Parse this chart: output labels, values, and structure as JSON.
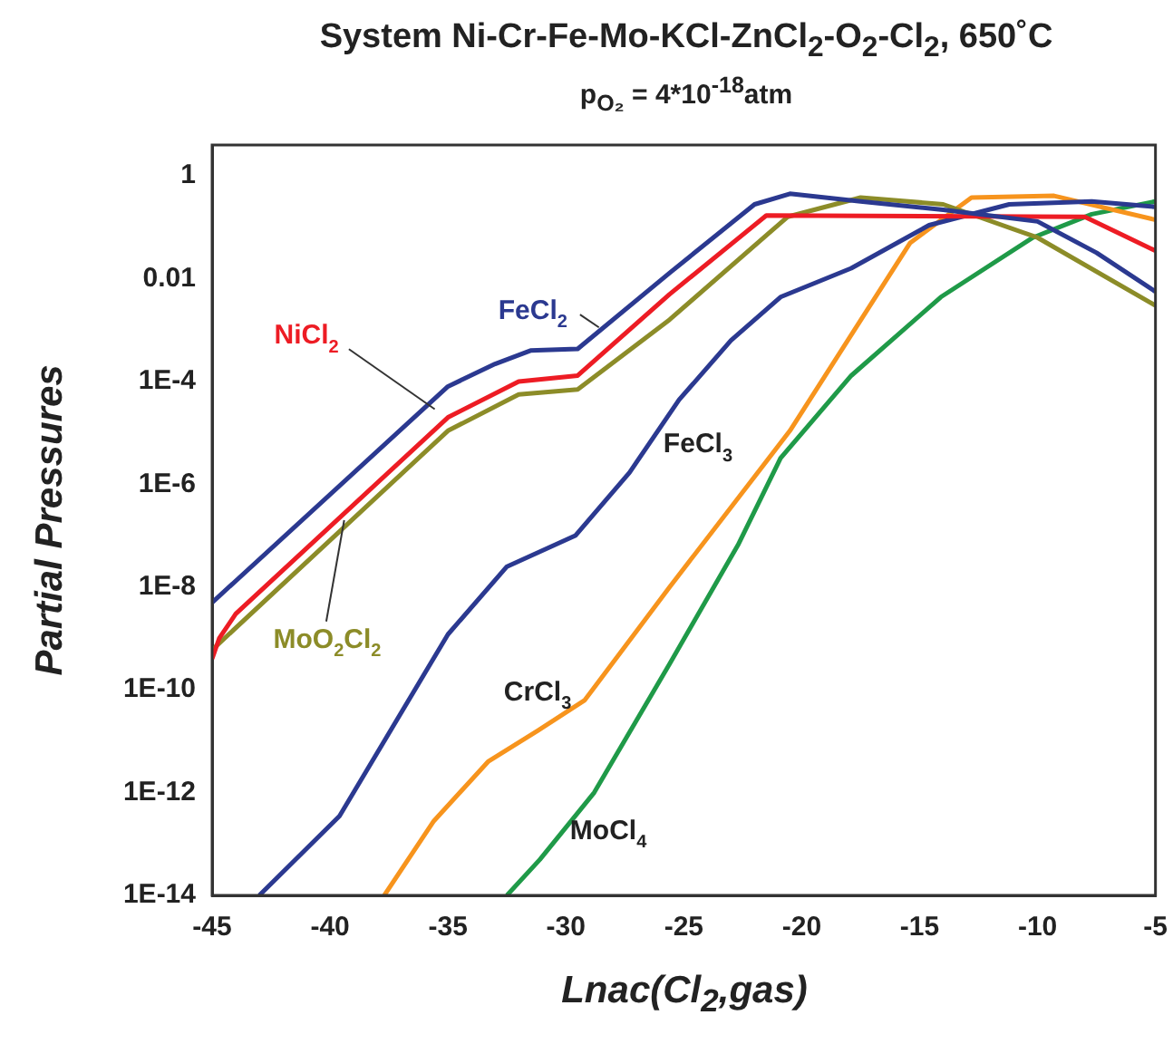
{
  "chart_data": {
    "type": "line",
    "title": "System Ni-Cr-Fe-Mo-KCl-ZnCl$_{2}$-O$_{2}$-Cl$_{2}$, 650˚C",
    "subtitle": "p$_{O₂}$ = 4*10$^{-18}$atm",
    "xlabel": "Lnac(Cl$_{2}$,gas)",
    "ylabel": "Partial Pressures",
    "log": "y",
    "xlim": [
      -45,
      -5
    ],
    "xticks": [
      -45,
      -40,
      -35,
      -30,
      -25,
      -20,
      -15,
      -10,
      -5
    ],
    "ylim": [
      1e-14,
      4
    ],
    "yticks": [
      {
        "value": 1,
        "label": "1"
      },
      {
        "value": 0.01,
        "label": "0.01"
      },
      {
        "value": 0.0001,
        "label": "1E-4"
      },
      {
        "value": 1e-06,
        "label": "1E-6"
      },
      {
        "value": 1e-08,
        "label": "1E-8"
      },
      {
        "value": 1e-10,
        "label": "1E-10"
      },
      {
        "value": 1e-12,
        "label": "1E-12"
      },
      {
        "value": 1e-14,
        "label": "1E-14"
      }
    ],
    "series": [
      {
        "name": "FeCl$_{2}$",
        "color": "#2b3990",
        "x": [
          -45,
          -35,
          -33,
          -31.5,
          -29.5,
          -25.6,
          -22,
          -20.5,
          -17.5,
          -14,
          -10,
          -7.5,
          -5
        ],
        "values": [
          5e-09,
          8e-05,
          0.00022,
          0.0004,
          0.00043,
          0.013,
          0.28,
          0.45,
          0.32,
          0.22,
          0.13,
          0.032,
          0.0056
        ]
      },
      {
        "name": "NiCl$_{2}$",
        "color": "#ed1c24",
        "x": [
          -45,
          -44.7,
          -44,
          -35,
          -32,
          -29.5,
          -25.6,
          -21.5,
          -8,
          -5
        ],
        "values": [
          4e-10,
          1e-09,
          3e-09,
          2e-05,
          0.0001,
          0.00013,
          0.005,
          0.17,
          0.16,
          0.035
        ]
      },
      {
        "name": "MoO$_{2}$Cl$_{2}$",
        "color": "#8c8c28",
        "x": [
          -45,
          -35,
          -32,
          -29.5,
          -25.6,
          -20.6,
          -17.5,
          -14,
          -10,
          -5
        ],
        "values": [
          6e-10,
          1.1e-05,
          5.6e-05,
          7e-05,
          0.0016,
          0.16,
          0.38,
          0.28,
          0.063,
          0.003
        ]
      },
      {
        "name": "FeCl$_{3}$",
        "color": "#2b3990",
        "x": [
          -43,
          -39.6,
          -35,
          -32.5,
          -29.6,
          -27.3,
          -25.2,
          -23,
          -20.9,
          -17.9,
          -14.6,
          -11.2,
          -7.7,
          -5
        ],
        "values": [
          1e-14,
          3.5e-13,
          1.2e-09,
          2.5e-08,
          1e-07,
          1.7e-06,
          4.4e-05,
          0.00063,
          0.0044,
          0.016,
          0.11,
          0.28,
          0.32,
          0.25
        ]
      },
      {
        "name": "CrCl$_{3}$",
        "color": "#f7941d",
        "x": [
          -37.7,
          -35.6,
          -33.3,
          -31.2,
          -29.2,
          -25.6,
          -20.5,
          -15.4,
          -12.8,
          -9.3,
          -5
        ],
        "values": [
          1e-14,
          2.8e-13,
          4e-12,
          1.6e-11,
          6.3e-11,
          1e-08,
          1.1e-05,
          0.05,
          0.38,
          0.41,
          0.14
        ]
      },
      {
        "name": "MoCl$_{4}$",
        "color": "#1f9a48",
        "x": [
          -32.5,
          -31.1,
          -28.8,
          -25.6,
          -22.7,
          -20.9,
          -17.9,
          -14.1,
          -10.2,
          -7.7,
          -5
        ],
        "values": [
          1e-14,
          5e-14,
          1e-12,
          3.2e-10,
          6.6e-08,
          3.2e-06,
          0.00013,
          0.0044,
          0.063,
          0.18,
          0.32
        ]
      }
    ]
  }
}
